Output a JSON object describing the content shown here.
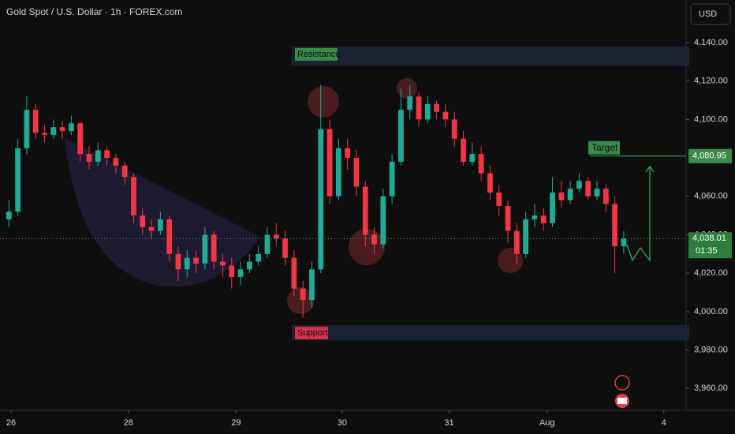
{
  "chart_data": {
    "type": "candlestick",
    "title": "Gold Spot / U.S. Dollar · 1h · FOREX.com",
    "currency": "USD",
    "up_color": "#22ab94",
    "down_color": "#f23645",
    "x": [
      1,
      2,
      3,
      4,
      5,
      6,
      7,
      8,
      9,
      10,
      11,
      12,
      13,
      14,
      15,
      16,
      17,
      18,
      19,
      20,
      21,
      22,
      23,
      24,
      25,
      26,
      27,
      28,
      29,
      30,
      31,
      32,
      33,
      34,
      35,
      36,
      37,
      38,
      39,
      40,
      41,
      42,
      43,
      44,
      45,
      46,
      47,
      48,
      49,
      50,
      51,
      52,
      53,
      54,
      55,
      56,
      57,
      58,
      59,
      60,
      61,
      62,
      63,
      64,
      65,
      66,
      67,
      68,
      69,
      70
    ],
    "open": [
      4048,
      4052,
      4085,
      4105,
      4093,
      4092,
      4096,
      4094,
      4098,
      4082,
      4078,
      4084,
      4080,
      4076,
      4070,
      4050,
      4044,
      4042,
      4048,
      4030,
      4022,
      4028,
      4025,
      4040,
      4026,
      4024,
      4018,
      4022,
      4026,
      4030,
      4040,
      4038,
      4028,
      4012,
      4006,
      4022,
      4095,
      4060,
      4085,
      4080,
      4065,
      4040,
      4035,
      4060,
      4078,
      4105,
      4112,
      4100,
      4108,
      4104,
      4100,
      4090,
      4078,
      4082,
      4072,
      4062,
      4055,
      4042,
      4030,
      4048,
      4050,
      4046,
      4062,
      4058,
      4064,
      4068,
      4060,
      4064,
      4056,
      4034
    ],
    "high": [
      4058,
      4090,
      4112,
      4108,
      4097,
      4100,
      4099,
      4102,
      4099,
      4086,
      4088,
      4086,
      4082,
      4078,
      4072,
      4054,
      4048,
      4052,
      4050,
      4034,
      4032,
      4032,
      4044,
      4042,
      4030,
      4028,
      4026,
      4030,
      4034,
      4044,
      4046,
      4042,
      4032,
      4016,
      4026,
      4118,
      4100,
      4090,
      4090,
      4084,
      4068,
      4044,
      4064,
      4082,
      4116,
      4118,
      4114,
      4112,
      4110,
      4108,
      4104,
      4094,
      4088,
      4086,
      4076,
      4066,
      4058,
      4046,
      4052,
      4056,
      4054,
      4070,
      4068,
      4068,
      4072,
      4070,
      4068,
      4066,
      4060,
      4042
    ],
    "low": [
      4044,
      4050,
      4082,
      4090,
      4088,
      4090,
      4090,
      4092,
      4078,
      4074,
      4076,
      4076,
      4072,
      4066,
      4046,
      4040,
      4038,
      4040,
      4026,
      4016,
      4018,
      4020,
      4022,
      4022,
      4018,
      4012,
      4014,
      4020,
      4024,
      4028,
      4034,
      4024,
      4008,
      3997,
      4002,
      4020,
      4056,
      4058,
      4074,
      4060,
      4034,
      4030,
      4033,
      4056,
      4076,
      4100,
      4096,
      4098,
      4100,
      4096,
      4086,
      4076,
      4076,
      4068,
      4058,
      4050,
      4036,
      4025,
      4028,
      4044,
      4042,
      4044,
      4054,
      4056,
      4062,
      4058,
      4058,
      4052,
      4020,
      4030
    ],
    "close": [
      4052,
      4085,
      4105,
      4093,
      4092,
      4096,
      4094,
      4098,
      4082,
      4078,
      4084,
      4080,
      4076,
      4070,
      4050,
      4044,
      4042,
      4048,
      4030,
      4022,
      4028,
      4025,
      4040,
      4026,
      4024,
      4018,
      4022,
      4026,
      4030,
      4040,
      4038,
      4028,
      4012,
      4006,
      4022,
      4095,
      4060,
      4085,
      4080,
      4065,
      4040,
      4035,
      4060,
      4078,
      4105,
      4112,
      4100,
      4108,
      4104,
      4100,
      4090,
      4078,
      4082,
      4072,
      4062,
      4055,
      4042,
      4030,
      4048,
      4050,
      4046,
      4062,
      4058,
      4064,
      4068,
      4060,
      4064,
      4056,
      4034,
      4038
    ],
    "xlim": [
      0,
      77
    ],
    "xticks": [
      {
        "value": 1.24,
        "label": "26"
      },
      {
        "value": 14.4,
        "label": "28"
      },
      {
        "value": 26.5,
        "label": "29"
      },
      {
        "value": 38.4,
        "label": "30"
      },
      {
        "value": 50.4,
        "label": "31"
      },
      {
        "value": 61.4,
        "label": "Aug"
      },
      {
        "value": 74.5,
        "label": "4"
      }
    ],
    "ylim": [
      3948.6,
      4162.2
    ],
    "yticks": [
      {
        "value": 4140,
        "label": "4,140.00"
      },
      {
        "value": 4120,
        "label": "4,120.00"
      },
      {
        "value": 4100,
        "label": "4,100.00"
      },
      {
        "value": 4060,
        "label": "4,060.00"
      },
      {
        "value": 4040,
        "label": "4,040.00"
      },
      {
        "value": 4020,
        "label": "4,020.00"
      },
      {
        "value": 4000,
        "label": "4,000.00"
      },
      {
        "value": 3980,
        "label": "3,980.00"
      },
      {
        "value": 3960,
        "label": "3,960.00"
      }
    ],
    "current_price": {
      "value": 4038.01,
      "label": "4,038.01",
      "countdown": "01:35"
    },
    "target": {
      "text": "Target",
      "value": 4080.95,
      "label": "4,080.95"
    },
    "resistance": {
      "text": "Resistance",
      "range": [
        4128,
        4138
      ]
    },
    "support": {
      "text": "Support",
      "range": [
        3985,
        3993
      ]
    }
  }
}
